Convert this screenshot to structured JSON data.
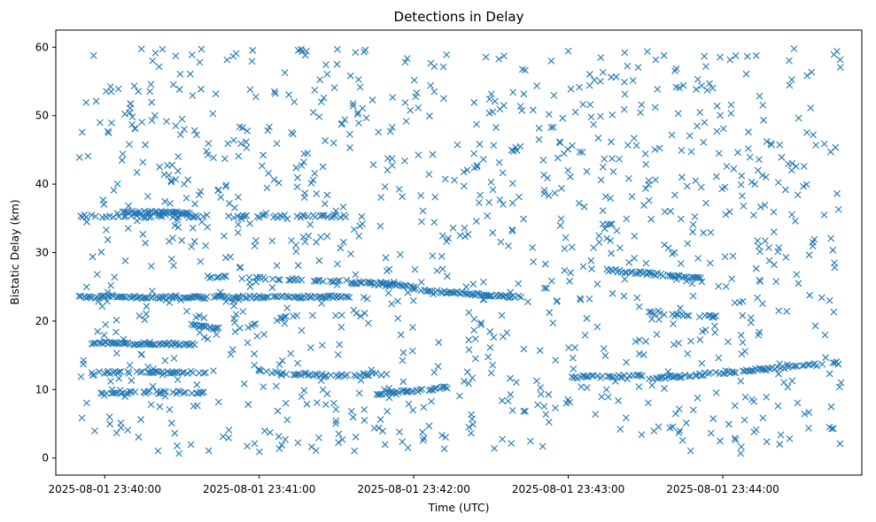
{
  "chart_data": {
    "type": "scatter",
    "title": "Detections in Delay",
    "xlabel": "Time (UTC)",
    "ylabel": "Bistatic Delay (km)",
    "marker": "x",
    "color": "#1f77b4",
    "ylim": [
      -2.5,
      62.5
    ],
    "xlim": [
      "2025-08-01 23:39:41",
      "2025-08-01 23:44:54"
    ],
    "x_range_observed": [
      "2025-08-01 23:39:50",
      "2025-08-01 23:44:46"
    ],
    "y_range_observed": [
      0.5,
      59.8
    ],
    "grid": false,
    "legend": "none",
    "x_ticks": [
      "2025-08-01 23:40:00",
      "2025-08-01 23:41:00",
      "2025-08-01 23:42:00",
      "2025-08-01 23:43:00",
      "2025-08-01 23:44:00"
    ],
    "y_ticks": [
      0,
      10,
      20,
      30,
      40,
      50,
      60
    ],
    "tracks": [
      {
        "t0": "2025-08-01 23:39:50",
        "t1": "2025-08-01 23:41:35",
        "y0": 23.5,
        "y1": 23.5,
        "density": 0.85
      },
      {
        "t0": "2025-08-01 23:39:50",
        "t1": "2025-08-01 23:41:35",
        "y0": 35.3,
        "y1": 35.3,
        "density": 0.45
      },
      {
        "t0": "2025-08-01 23:40:05",
        "t1": "2025-08-01 23:40:33",
        "y0": 35.9,
        "y1": 35.8,
        "density": 0.9
      },
      {
        "t0": "2025-08-01 23:39:55",
        "t1": "2025-08-01 23:40:35",
        "y0": 16.8,
        "y1": 16.6,
        "density": 0.95
      },
      {
        "t0": "2025-08-01 23:39:55",
        "t1": "2025-08-01 23:40:40",
        "y0": 12.5,
        "y1": 12.5,
        "density": 0.5
      },
      {
        "t0": "2025-08-01 23:39:55",
        "t1": "2025-08-01 23:40:40",
        "y0": 9.6,
        "y1": 9.6,
        "density": 0.5
      },
      {
        "t0": "2025-08-01 23:40:33",
        "t1": "2025-08-01 23:40:45",
        "y0": 19.5,
        "y1": 18.8,
        "density": 0.7
      },
      {
        "t0": "2025-08-01 23:40:55",
        "t1": "2025-08-01 23:41:15",
        "y0": 19.2,
        "y1": 21.0,
        "density": 0.4
      },
      {
        "t0": "2025-08-01 23:40:40",
        "t1": "2025-08-01 23:41:55",
        "y0": 26.5,
        "y1": 25.5,
        "density": 0.35
      },
      {
        "t0": "2025-08-01 23:41:35",
        "t1": "2025-08-01 23:42:00",
        "y0": 25.6,
        "y1": 25.1,
        "density": 0.8
      },
      {
        "t0": "2025-08-01 23:42:00",
        "t1": "2025-08-01 23:42:40",
        "y0": 24.6,
        "y1": 23.5,
        "density": 0.85
      },
      {
        "t0": "2025-08-01 23:41:00",
        "t1": "2025-08-01 23:41:25",
        "y0": 12.6,
        "y1": 12.1,
        "density": 0.6
      },
      {
        "t0": "2025-08-01 23:41:25",
        "t1": "2025-08-01 23:41:50",
        "y0": 11.9,
        "y1": 12.3,
        "density": 0.5
      },
      {
        "t0": "2025-08-01 23:41:45",
        "t1": "2025-08-01 23:42:15",
        "y0": 9.3,
        "y1": 10.4,
        "density": 0.7
      },
      {
        "t0": "2025-08-01 23:43:00",
        "t1": "2025-08-01 23:43:30",
        "y0": 11.8,
        "y1": 12.0,
        "density": 0.65
      },
      {
        "t0": "2025-08-01 23:43:15",
        "t1": "2025-08-01 23:43:52",
        "y0": 27.5,
        "y1": 26.2,
        "density": 0.8
      },
      {
        "t0": "2025-08-01 23:43:30",
        "t1": "2025-08-01 23:44:45",
        "y0": 11.5,
        "y1": 13.9,
        "density": 0.7
      },
      {
        "t0": "2025-08-01 23:43:30",
        "t1": "2025-08-01 23:44:00",
        "y0": 21.2,
        "y1": 20.6,
        "density": 0.5
      }
    ]
  }
}
